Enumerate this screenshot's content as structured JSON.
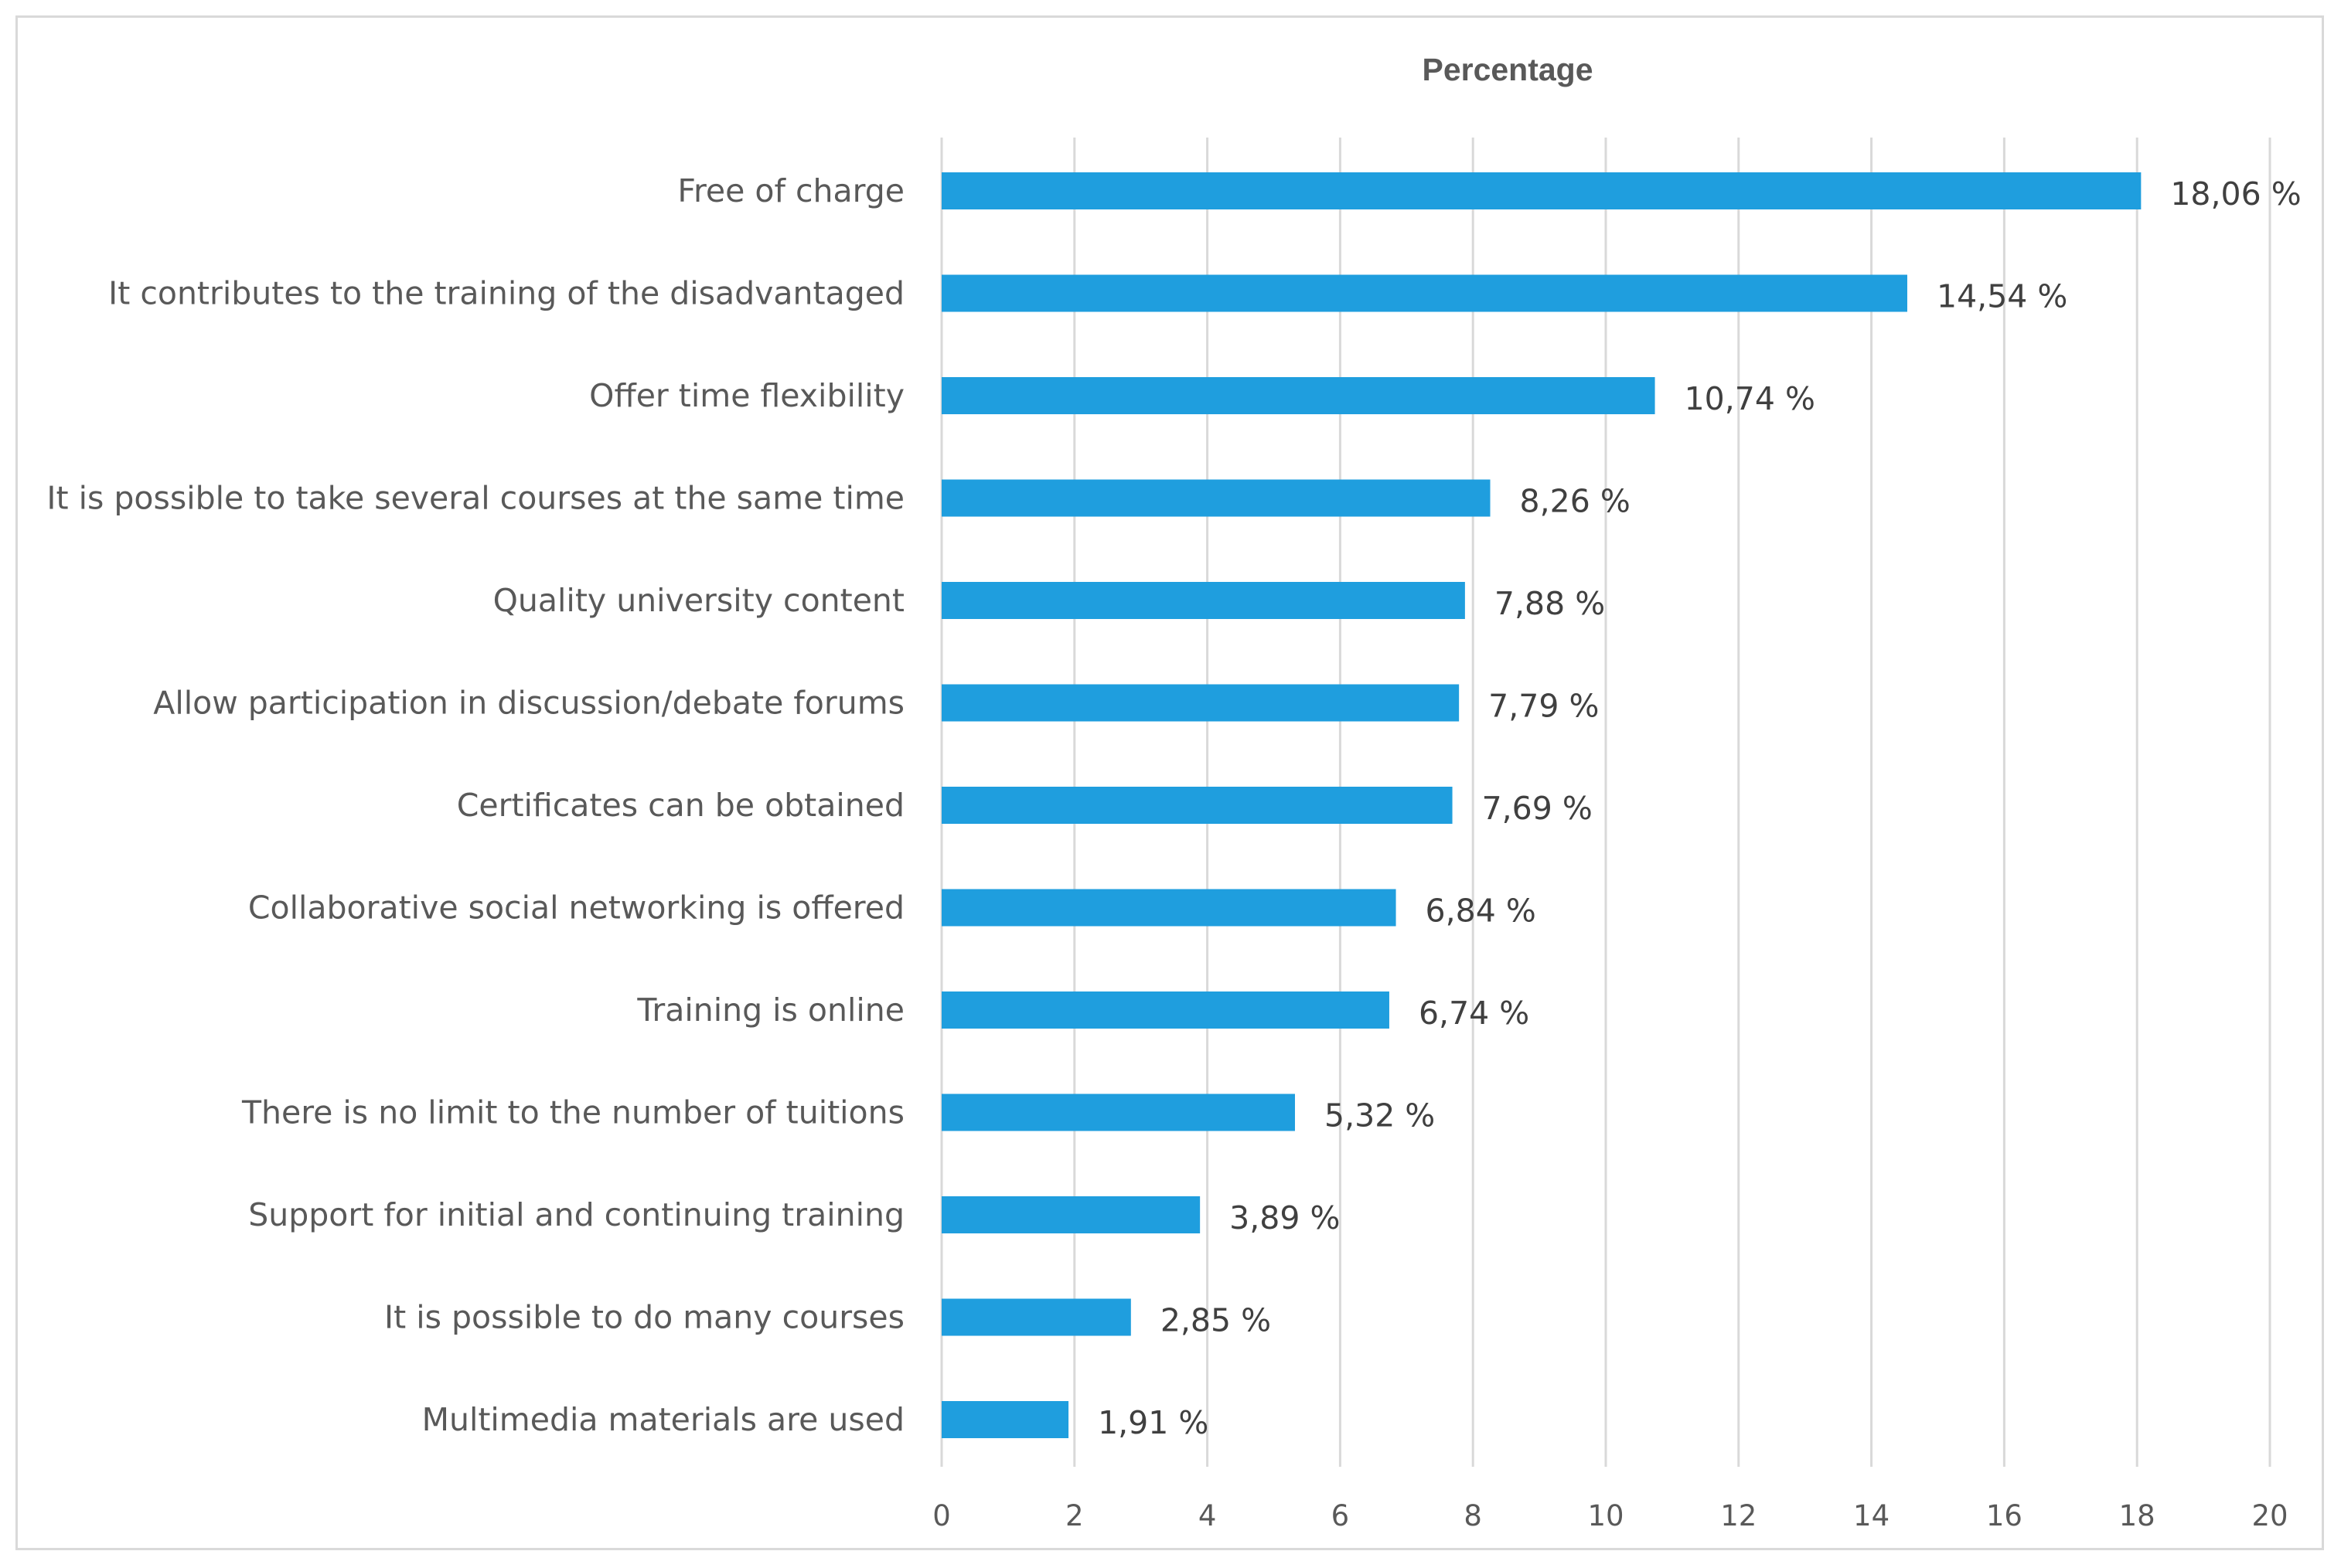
{
  "chart_data": {
    "type": "bar",
    "orientation": "horizontal",
    "title": "Percentage",
    "xlabel": "",
    "ylabel": "",
    "xlim": [
      0,
      20
    ],
    "xticks": [
      0,
      2,
      4,
      6,
      8,
      10,
      12,
      14,
      16,
      18,
      20
    ],
    "grid": "vertical major gridlines",
    "bar_color": "#1f9ede",
    "grid_color": "#d9d9d9",
    "categories": [
      "Free of charge",
      "It contributes to the training of the disadvantaged",
      "Offer time flexibility",
      "It is possible to take several courses at the same time",
      "Quality university content",
      "Allow participation in discussion/debate forums",
      "Certificates can be obtained",
      "Collaborative social networking is offered",
      "Training is online",
      "There is no limit to the number of tuitions",
      "Support for initial and continuing training",
      "It is possible to do many courses",
      "Multimedia materials are used"
    ],
    "values": [
      18.06,
      14.54,
      10.74,
      8.26,
      7.88,
      7.79,
      7.69,
      6.84,
      6.74,
      5.32,
      3.89,
      2.85,
      1.91
    ],
    "data_labels": [
      "18,06 %",
      "14,54 %",
      "10,74 %",
      "8,26 %",
      "7,88 %",
      "7,79 %",
      "7,69 %",
      "6,84 %",
      "6,74 %",
      "5,32 %",
      "3,89 %",
      "2,85 %",
      "1,91 %"
    ]
  }
}
